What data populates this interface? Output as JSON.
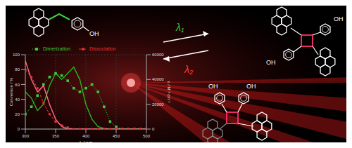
{
  "monomer": {
    "labels": [
      "OH"
    ]
  },
  "arrows": {
    "forward": "λ₁",
    "backward": "λ₂"
  },
  "products": [
    {
      "labels": [
        "OH",
        "OH"
      ]
    },
    {
      "labels": [
        "OH",
        "OH"
      ]
    }
  ],
  "chart_data": {
    "type": "line",
    "xlabel": "λ / nm",
    "ylabel": "Conversion / %",
    "y2label": "ε / M⁻¹ cm⁻¹",
    "x": [
      300,
      310,
      320,
      330,
      340,
      350,
      360,
      370,
      380,
      390,
      400,
      410,
      420,
      430,
      440,
      450,
      460,
      470,
      480,
      490,
      500
    ],
    "xlim": [
      300,
      500
    ],
    "xticks": [
      300,
      350,
      400,
      450,
      500
    ],
    "ylim": [
      0,
      100
    ],
    "yticks": [
      0,
      20,
      40,
      60,
      80,
      100
    ],
    "y2lim": [
      0,
      60000
    ],
    "y2ticks": [
      0,
      20000,
      40000,
      60000
    ],
    "legend": "top",
    "series": [
      {
        "name": "Dimerization",
        "color": "#3ec93e",
        "marker": "square",
        "line_style": "dotted",
        "axis": "y",
        "values": [
          20,
          30,
          45,
          60,
          70,
          75,
          72,
          65,
          55,
          50,
          55,
          60,
          50,
          30,
          10,
          3,
          0,
          0,
          0,
          0,
          0
        ]
      },
      {
        "name": "Dissociation",
        "color": "#e83030",
        "marker": "circle",
        "line_style": "dashed",
        "axis": "y",
        "values": [
          80,
          70,
          55,
          35,
          20,
          10,
          5,
          2,
          0,
          0,
          0,
          0,
          0,
          0,
          0,
          0,
          0,
          0,
          0,
          0,
          0
        ]
      },
      {
        "color": "#22b822",
        "marker": "none",
        "line_style": "solid",
        "axis": "y2",
        "values": [
          30000,
          25000,
          15000,
          20000,
          35000,
          45000,
          40000,
          45000,
          50000,
          40000,
          20000,
          8000,
          2000,
          500,
          0,
          0,
          0,
          0,
          0,
          0,
          0
        ]
      },
      {
        "color": "#ff6b8a",
        "marker": "none",
        "line_style": "solid",
        "axis": "y2",
        "values": [
          55000,
          40000,
          30000,
          35000,
          20000,
          8000,
          2000,
          0,
          0,
          0,
          0,
          0,
          0,
          0,
          0,
          0,
          0,
          0,
          0,
          0,
          0
        ]
      }
    ]
  }
}
